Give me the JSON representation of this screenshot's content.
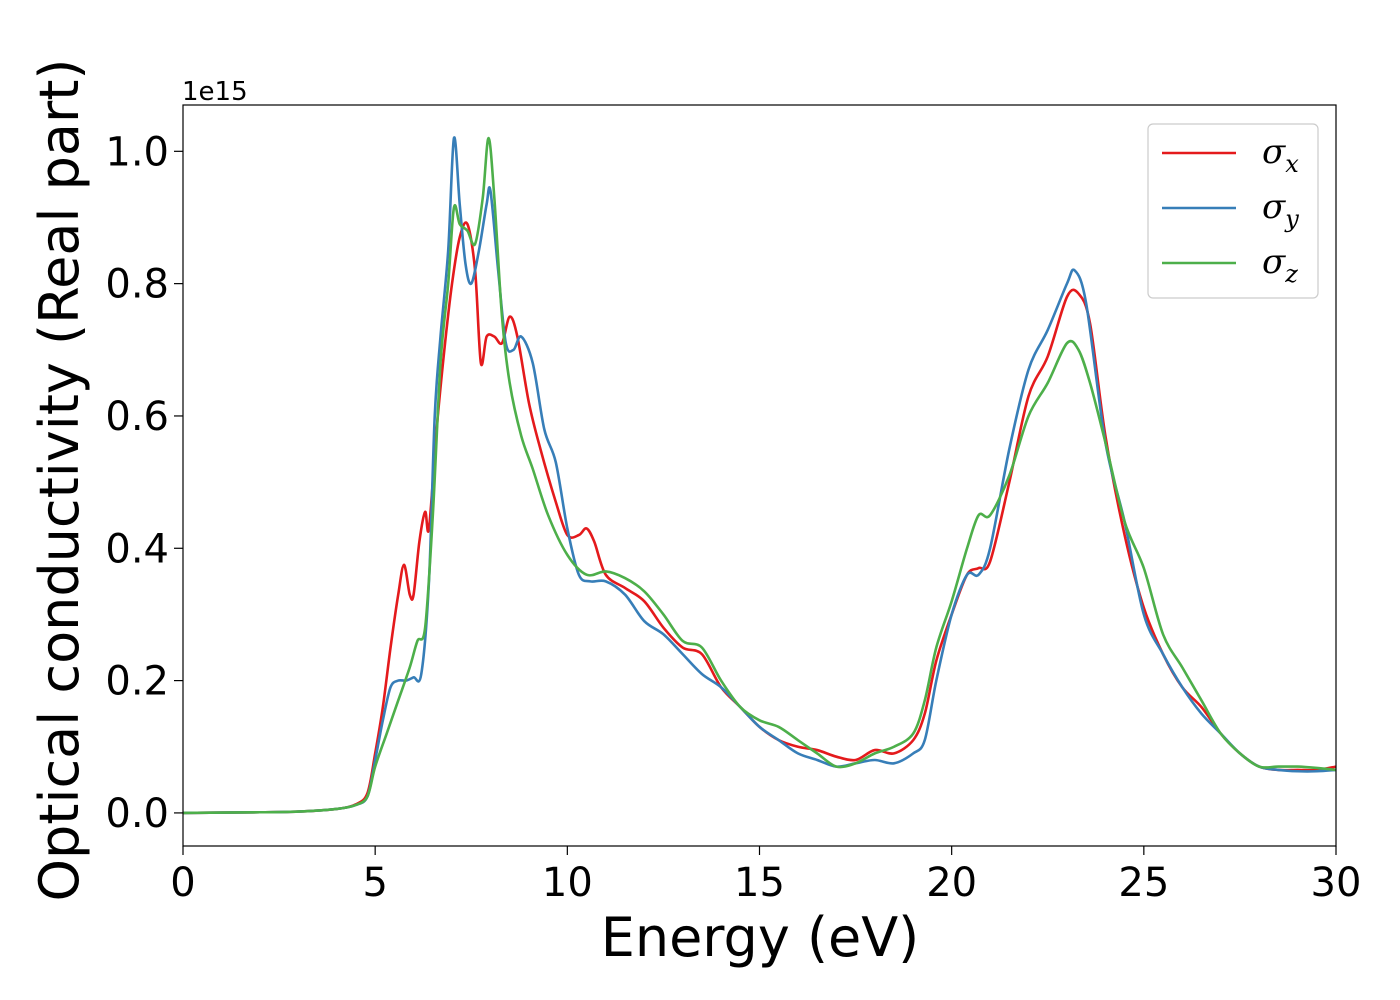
{
  "chart_data": {
    "type": "line",
    "title": "",
    "xlabel": "Energy (eV)",
    "ylabel": "Optical conductivity (Real part)",
    "y_offset_label": "1e15",
    "xlim": [
      0,
      30
    ],
    "ylim": [
      -0.05,
      1.07
    ],
    "xticks": [
      0,
      5,
      10,
      15,
      20,
      25,
      30
    ],
    "xtick_labels": [
      "0",
      "5",
      "10",
      "15",
      "20",
      "25",
      "30"
    ],
    "yticks": [
      0.0,
      0.2,
      0.4,
      0.6,
      0.8,
      1.0
    ],
    "ytick_labels": [
      "0.0",
      "0.2",
      "0.4",
      "0.6",
      "0.8",
      "1.0"
    ],
    "grid": false,
    "legend_position": "top-right",
    "series": [
      {
        "name": "σ",
        "subscript": "x",
        "color": "#e41a1c",
        "x": [
          0,
          2,
          3,
          4,
          4.5,
          4.8,
          5.0,
          5.2,
          5.4,
          5.6,
          5.75,
          5.9,
          6.0,
          6.15,
          6.3,
          6.4,
          6.6,
          6.8,
          7.0,
          7.2,
          7.4,
          7.6,
          7.75,
          7.9,
          8.1,
          8.3,
          8.5,
          8.7,
          9.0,
          9.3,
          9.7,
          10.0,
          10.3,
          10.5,
          10.7,
          11.0,
          11.5,
          12.0,
          12.5,
          13.0,
          13.5,
          14.0,
          14.5,
          15.0,
          15.5,
          16.0,
          16.5,
          17.0,
          17.5,
          18.0,
          18.5,
          19.0,
          19.3,
          19.6,
          20.0,
          20.4,
          20.7,
          21.0,
          21.5,
          22.0,
          22.5,
          23.0,
          23.3,
          23.6,
          24.0,
          24.5,
          25.0,
          25.5,
          26.0,
          26.5,
          27.0,
          27.5,
          28.0,
          28.5,
          29.0,
          29.5,
          30.0
        ],
        "values": [
          0.0,
          0.001,
          0.002,
          0.006,
          0.013,
          0.03,
          0.09,
          0.16,
          0.25,
          0.33,
          0.375,
          0.33,
          0.33,
          0.41,
          0.455,
          0.43,
          0.58,
          0.7,
          0.8,
          0.87,
          0.89,
          0.82,
          0.68,
          0.72,
          0.72,
          0.71,
          0.75,
          0.72,
          0.62,
          0.55,
          0.47,
          0.42,
          0.42,
          0.43,
          0.41,
          0.36,
          0.34,
          0.32,
          0.28,
          0.25,
          0.24,
          0.19,
          0.16,
          0.13,
          0.11,
          0.1,
          0.095,
          0.085,
          0.08,
          0.095,
          0.09,
          0.11,
          0.15,
          0.23,
          0.3,
          0.36,
          0.37,
          0.38,
          0.5,
          0.63,
          0.69,
          0.78,
          0.785,
          0.74,
          0.57,
          0.42,
          0.31,
          0.24,
          0.19,
          0.16,
          0.12,
          0.09,
          0.07,
          0.065,
          0.065,
          0.065,
          0.07
        ]
      },
      {
        "name": "σ",
        "subscript": "y",
        "color": "#377eb8",
        "x": [
          0,
          2,
          3,
          4,
          4.5,
          4.8,
          5.0,
          5.2,
          5.4,
          5.6,
          5.8,
          6.0,
          6.2,
          6.4,
          6.55,
          6.7,
          6.9,
          7.05,
          7.2,
          7.35,
          7.5,
          7.7,
          7.9,
          8.0,
          8.2,
          8.4,
          8.6,
          8.8,
          9.1,
          9.4,
          9.7,
          10.0,
          10.3,
          10.6,
          11.0,
          11.5,
          12.0,
          12.5,
          13.0,
          13.5,
          14.0,
          14.5,
          15.0,
          15.5,
          16.0,
          16.5,
          17.0,
          17.5,
          18.0,
          18.5,
          19.0,
          19.3,
          19.6,
          20.0,
          20.4,
          20.7,
          21.0,
          21.5,
          22.0,
          22.5,
          23.0,
          23.2,
          23.5,
          24.0,
          24.5,
          25.0,
          25.5,
          26.0,
          26.5,
          27.0,
          27.5,
          28.0,
          28.5,
          29.0,
          29.5,
          30.0
        ],
        "values": [
          0.0,
          0.001,
          0.002,
          0.006,
          0.012,
          0.025,
          0.08,
          0.14,
          0.19,
          0.2,
          0.2,
          0.205,
          0.21,
          0.35,
          0.6,
          0.72,
          0.85,
          1.02,
          0.92,
          0.83,
          0.8,
          0.85,
          0.92,
          0.94,
          0.82,
          0.71,
          0.7,
          0.72,
          0.68,
          0.58,
          0.53,
          0.43,
          0.36,
          0.35,
          0.35,
          0.33,
          0.29,
          0.27,
          0.24,
          0.21,
          0.19,
          0.16,
          0.13,
          0.11,
          0.09,
          0.08,
          0.07,
          0.075,
          0.08,
          0.075,
          0.09,
          0.11,
          0.2,
          0.3,
          0.36,
          0.36,
          0.4,
          0.55,
          0.67,
          0.73,
          0.8,
          0.82,
          0.77,
          0.56,
          0.44,
          0.3,
          0.24,
          0.19,
          0.15,
          0.12,
          0.09,
          0.07,
          0.065,
          0.063,
          0.063,
          0.065
        ]
      },
      {
        "name": "σ",
        "subscript": "z",
        "color": "#4daf4a",
        "x": [
          0,
          2,
          3,
          4,
          4.5,
          4.8,
          5.0,
          5.3,
          5.6,
          5.9,
          6.1,
          6.3,
          6.5,
          6.7,
          6.9,
          7.05,
          7.2,
          7.4,
          7.6,
          7.8,
          7.95,
          8.1,
          8.3,
          8.5,
          8.8,
          9.1,
          9.5,
          10.0,
          10.5,
          11.0,
          11.5,
          12.0,
          12.5,
          13.0,
          13.5,
          14.0,
          14.5,
          15.0,
          15.5,
          16.0,
          16.5,
          17.0,
          17.5,
          18.0,
          18.5,
          19.0,
          19.3,
          19.6,
          20.0,
          20.4,
          20.7,
          21.0,
          21.5,
          22.0,
          22.5,
          23.0,
          23.3,
          23.6,
          24.0,
          24.5,
          25.0,
          25.5,
          26.0,
          26.5,
          27.0,
          27.5,
          28.0,
          28.5,
          29.0,
          29.5,
          30.0
        ],
        "values": [
          0.0,
          0.001,
          0.002,
          0.006,
          0.012,
          0.025,
          0.07,
          0.12,
          0.17,
          0.22,
          0.26,
          0.28,
          0.45,
          0.68,
          0.8,
          0.915,
          0.89,
          0.88,
          0.86,
          0.93,
          1.02,
          0.93,
          0.75,
          0.65,
          0.57,
          0.52,
          0.45,
          0.39,
          0.36,
          0.365,
          0.355,
          0.335,
          0.3,
          0.26,
          0.25,
          0.2,
          0.16,
          0.14,
          0.13,
          0.11,
          0.09,
          0.07,
          0.075,
          0.09,
          0.1,
          0.12,
          0.17,
          0.25,
          0.32,
          0.4,
          0.45,
          0.45,
          0.51,
          0.6,
          0.65,
          0.71,
          0.7,
          0.65,
          0.56,
          0.44,
          0.37,
          0.27,
          0.22,
          0.17,
          0.12,
          0.09,
          0.07,
          0.07,
          0.07,
          0.068,
          0.065
        ]
      }
    ]
  }
}
